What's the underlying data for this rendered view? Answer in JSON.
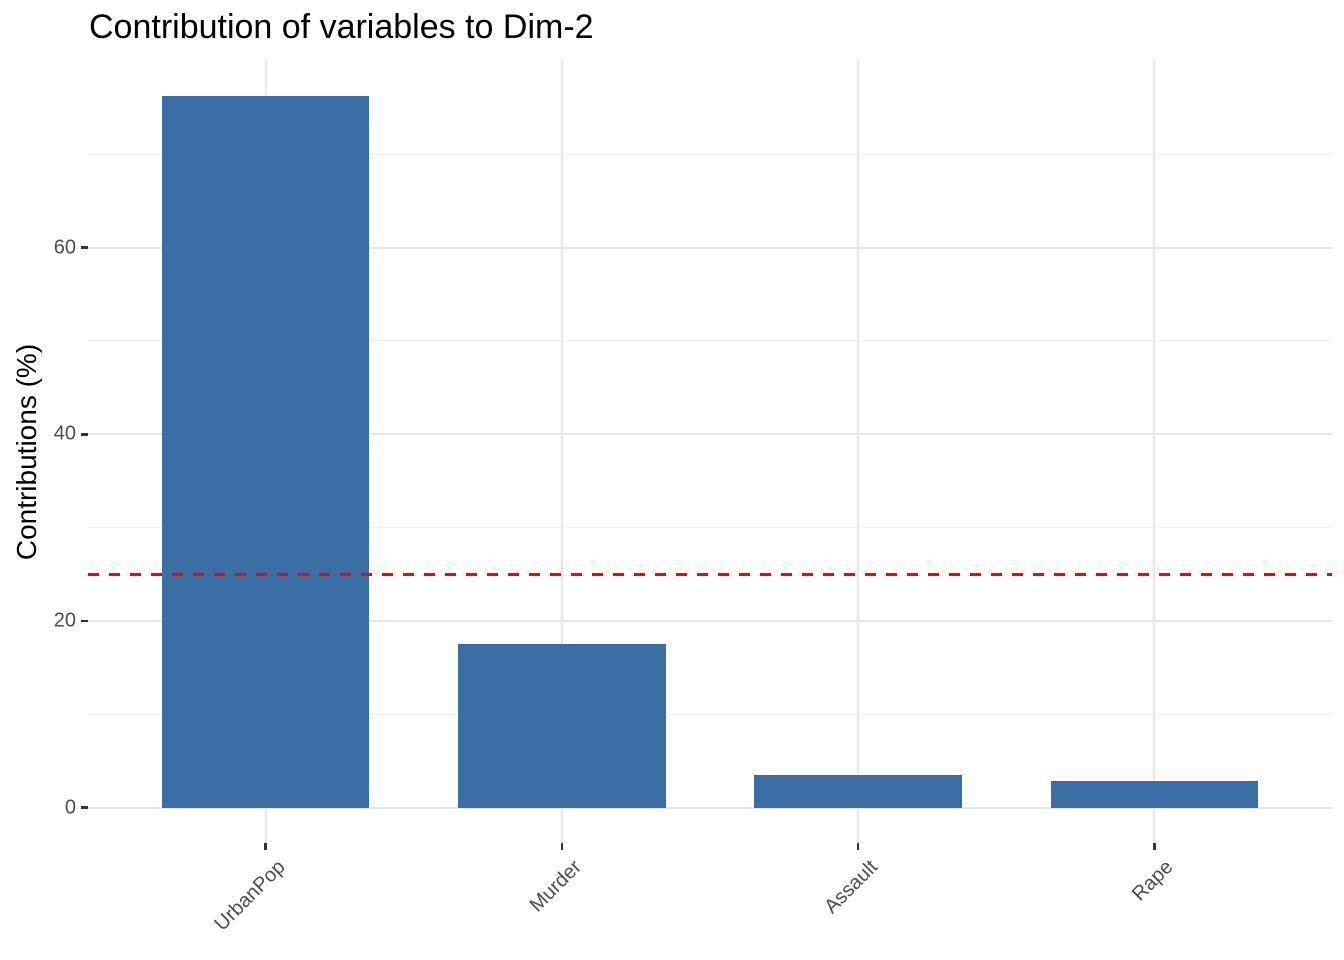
{
  "title": "Contribution of variables to Dim-2",
  "colors": {
    "bar_fill": "#3A6EA5",
    "reference_line": "#FF0000",
    "grid_major": "#E6E6E6",
    "grid_minor": "#F1F1F1",
    "tick_mark": "#333333",
    "tick_label": "#4D4D4D",
    "title_text": "#000000",
    "background": "#FFFFFF"
  },
  "chart_data": {
    "type": "bar",
    "title": "Contribution of variables to Dim-2",
    "xlabel": "",
    "ylabel": "Contributions (%)",
    "categories": [
      "UrbanPop",
      "Murder",
      "Assault",
      "Rape"
    ],
    "values": [
      76.2,
      17.5,
      3.5,
      2.8
    ],
    "y_ticks": [
      0,
      20,
      40,
      60
    ],
    "y_minor_gridlines": [
      10,
      30,
      50,
      70
    ],
    "ylim": [
      -3.8,
      80
    ],
    "reference_line": {
      "value": 25,
      "style": "dashed",
      "color": "#FF0000"
    },
    "grid": true,
    "legend_position": "none",
    "x_label_rotation_deg": 45,
    "bar_relative_width": 0.7
  }
}
